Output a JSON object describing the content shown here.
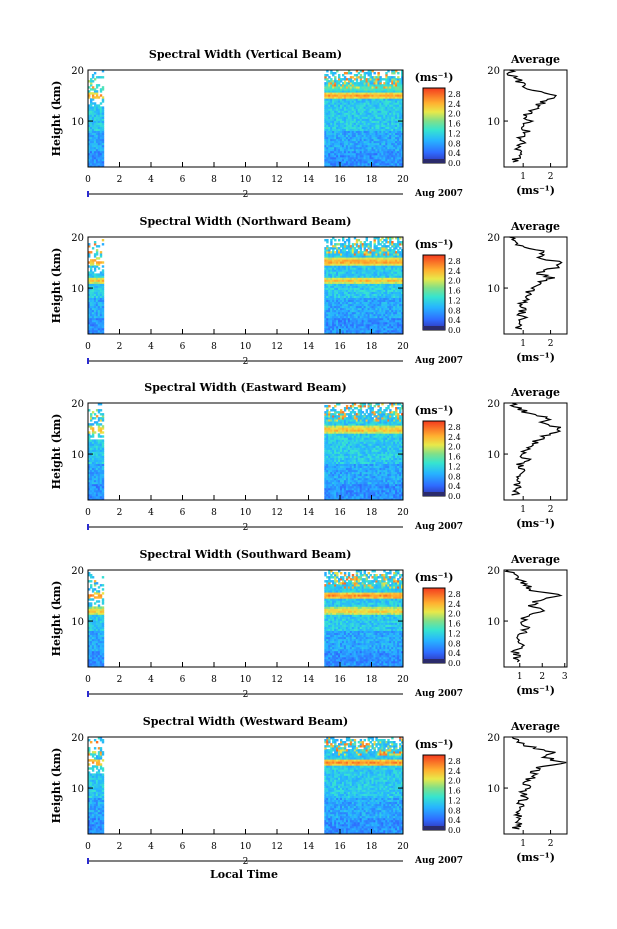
{
  "figure": {
    "xlabel": "Local Time",
    "date_label": "Aug 2007",
    "day_label": "2",
    "unit_label": "(ms⁻¹)"
  },
  "chart_data": [
    {
      "type": "heatmap",
      "title": "Spectral Width (Vertical Beam)",
      "ylabel": "Height (km)",
      "xlim": [
        0,
        20
      ],
      "ylim": [
        1,
        20
      ],
      "xticks": [
        0,
        2,
        4,
        6,
        8,
        10,
        12,
        14,
        16,
        18,
        20
      ],
      "yticks": [
        10,
        20
      ],
      "data_intervals": [
        [
          0,
          1
        ],
        [
          15,
          20
        ]
      ],
      "colorbar": {
        "label": "(ms⁻¹)",
        "ticks": [
          "2.8",
          "2.4",
          "2.0",
          "1.6",
          "1.2",
          "0.8",
          "0.4",
          "0.0"
        ]
      },
      "bands": [
        {
          "h": 15.0,
          "v": 2.7
        },
        {
          "h": 16.5,
          "v": 1.8
        }
      ]
    },
    {
      "type": "heatmap",
      "title": "Spectral Width (Northward Beam)",
      "ylabel": "Height (km)",
      "xlim": [
        0,
        20
      ],
      "ylim": [
        1,
        20
      ],
      "xticks": [
        0,
        2,
        4,
        6,
        8,
        10,
        12,
        14,
        16,
        18,
        20
      ],
      "yticks": [
        10,
        20
      ],
      "data_intervals": [
        [
          0,
          1
        ],
        [
          15,
          20
        ]
      ],
      "colorbar": {
        "label": "(ms⁻¹)",
        "ticks": [
          "2.8",
          "2.4",
          "2.0",
          "1.6",
          "1.2",
          "0.8",
          "0.4",
          "0.0"
        ]
      },
      "bands": [
        {
          "h": 15.2,
          "v": 2.7
        },
        {
          "h": 11.5,
          "v": 2.5
        }
      ]
    },
    {
      "type": "heatmap",
      "title": "Spectral Width (Eastward Beam)",
      "ylabel": "Height (km)",
      "xlim": [
        0,
        20
      ],
      "ylim": [
        1,
        20
      ],
      "xticks": [
        0,
        2,
        4,
        6,
        8,
        10,
        12,
        14,
        16,
        18,
        20
      ],
      "yticks": [
        10,
        20
      ],
      "data_intervals": [
        [
          0,
          1
        ],
        [
          15,
          20
        ]
      ],
      "colorbar": {
        "label": "(ms⁻¹)",
        "ticks": [
          "2.8",
          "2.4",
          "2.0",
          "1.6",
          "1.2",
          "0.8",
          "0.4",
          "0.0"
        ]
      },
      "bands": [
        {
          "h": 14.8,
          "v": 2.6
        }
      ]
    },
    {
      "type": "heatmap",
      "title": "Spectral Width (Southward Beam)",
      "ylabel": "Height (km)",
      "xlim": [
        0,
        20
      ],
      "ylim": [
        1,
        20
      ],
      "xticks": [
        0,
        2,
        4,
        6,
        8,
        10,
        12,
        14,
        16,
        18,
        20
      ],
      "yticks": [
        10,
        20
      ],
      "data_intervals": [
        [
          0,
          1
        ],
        [
          15,
          20
        ]
      ],
      "colorbar": {
        "label": "(ms⁻¹)",
        "ticks": [
          "2.8",
          "2.4",
          "2.0",
          "1.6",
          "1.2",
          "0.8",
          "0.4",
          "0.0"
        ]
      },
      "bands": [
        {
          "h": 15.0,
          "v": 2.8
        },
        {
          "h": 12.0,
          "v": 2.5
        }
      ]
    },
    {
      "type": "heatmap",
      "title": "Spectral Width (Westward Beam)",
      "ylabel": "Height (km)",
      "xlim": [
        0,
        20
      ],
      "ylim": [
        1,
        20
      ],
      "xticks": [
        0,
        2,
        4,
        6,
        8,
        10,
        12,
        14,
        16,
        18,
        20
      ],
      "yticks": [
        10,
        20
      ],
      "data_intervals": [
        [
          0,
          1
        ],
        [
          15,
          20
        ]
      ],
      "colorbar": {
        "label": "(ms⁻¹)",
        "ticks": [
          "2.8",
          "2.4",
          "2.0",
          "1.6",
          "1.2",
          "0.8",
          "0.4",
          "0.0"
        ]
      },
      "bands": [
        {
          "h": 15.0,
          "v": 2.8
        }
      ]
    },
    {
      "type": "line",
      "title": "Average",
      "xlabel": "(ms⁻¹)",
      "xticks": [
        1,
        2
      ],
      "yticks": [
        10,
        20
      ],
      "xlim": [
        0.3,
        2.6
      ],
      "ylim": [
        1,
        20
      ],
      "y": [
        2,
        3,
        4,
        5,
        6,
        7,
        8,
        9,
        10,
        11,
        12,
        13,
        14,
        15,
        16,
        17,
        18,
        19,
        20
      ],
      "x": [
        0.7,
        0.8,
        0.9,
        0.8,
        1.0,
        0.9,
        1.1,
        1.0,
        1.2,
        1.1,
        1.3,
        1.5,
        1.8,
        2.3,
        1.4,
        1.0,
        0.8,
        0.6,
        0.5
      ]
    },
    {
      "type": "line",
      "title": "Average",
      "xlabel": "(ms⁻¹)",
      "xticks": [
        1,
        2
      ],
      "yticks": [
        10,
        20
      ],
      "xlim": [
        0.3,
        2.6
      ],
      "ylim": [
        1,
        20
      ],
      "y": [
        2,
        3,
        4,
        5,
        6,
        7,
        8,
        9,
        10,
        11,
        12,
        13,
        14,
        15,
        16,
        17,
        18,
        19,
        20
      ],
      "x": [
        0.8,
        0.9,
        1.0,
        0.9,
        1.1,
        1.0,
        1.2,
        1.1,
        1.4,
        1.6,
        2.0,
        1.5,
        2.2,
        2.4,
        1.6,
        1.8,
        1.0,
        0.7,
        0.5
      ]
    },
    {
      "type": "line",
      "title": "Average",
      "xlabel": "(ms⁻¹)",
      "xticks": [
        1,
        2
      ],
      "yticks": [
        10,
        20
      ],
      "xlim": [
        0.3,
        2.6
      ],
      "ylim": [
        1,
        20
      ],
      "y": [
        2,
        3,
        4,
        5,
        6,
        7,
        8,
        9,
        10,
        11,
        12,
        13,
        14,
        15,
        16,
        17,
        18,
        19,
        20
      ],
      "x": [
        0.7,
        0.8,
        0.7,
        0.9,
        0.8,
        1.0,
        0.9,
        1.1,
        1.0,
        1.2,
        1.4,
        1.6,
        2.0,
        2.4,
        1.7,
        1.9,
        1.2,
        0.8,
        0.6
      ]
    },
    {
      "type": "line",
      "title": "Average",
      "xlabel": "(ms⁻¹)",
      "xticks": [
        1,
        2,
        3
      ],
      "yticks": [
        10,
        20
      ],
      "xlim": [
        0.3,
        3.1
      ],
      "ylim": [
        1,
        20
      ],
      "y": [
        2,
        3,
        4,
        5,
        6,
        7,
        8,
        9,
        10,
        11,
        12,
        13,
        14,
        15,
        16,
        17,
        18,
        19,
        20
      ],
      "x": [
        0.8,
        0.9,
        0.8,
        1.0,
        1.1,
        1.0,
        1.2,
        1.3,
        1.1,
        1.3,
        2.2,
        1.5,
        1.8,
        2.9,
        1.6,
        1.3,
        1.0,
        0.7,
        0.5
      ]
    },
    {
      "type": "line",
      "title": "Average",
      "xlabel": "(ms⁻¹)",
      "xticks": [
        1,
        2
      ],
      "yticks": [
        10,
        20
      ],
      "xlim": [
        0.3,
        2.6
      ],
      "ylim": [
        1,
        20
      ],
      "y": [
        2,
        3,
        4,
        5,
        6,
        7,
        8,
        9,
        10,
        11,
        12,
        13,
        14,
        15,
        16,
        17,
        18,
        19,
        20
      ],
      "x": [
        0.7,
        0.8,
        0.9,
        0.8,
        1.0,
        0.8,
        1.1,
        1.0,
        1.2,
        1.1,
        1.3,
        1.4,
        1.6,
        2.5,
        1.8,
        2.1,
        1.3,
        0.9,
        0.6
      ]
    }
  ]
}
